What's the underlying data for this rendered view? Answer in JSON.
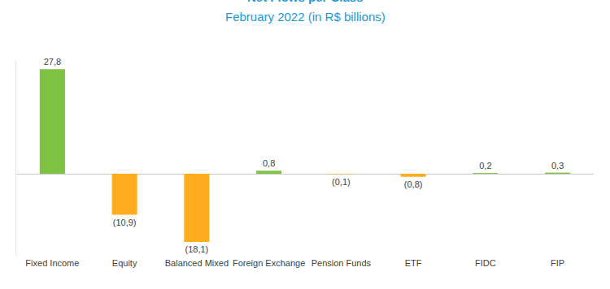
{
  "chart_data": {
    "type": "bar",
    "title": "Net Flows per Class",
    "subtitle": "February 2022 (in R$ billions)",
    "categories": [
      "Fixed Income",
      "Equity",
      "Balanced Mixed",
      "Foreign Exchange",
      "Pension Funds",
      "ETF",
      "FIDC",
      "FIP"
    ],
    "values": [
      27.8,
      -10.9,
      -18.1,
      0.8,
      -0.1,
      -0.8,
      0.2,
      0.3
    ],
    "value_labels": [
      "27,8",
      "(10,9)",
      "(18,1)",
      "0,8",
      "(0,1)",
      "(0,8)",
      "0,2",
      "0,3"
    ],
    "colors": [
      "#7dc242",
      "#ffad1f",
      "#ffad1f",
      "#7dc242",
      "#ffad1f",
      "#ffad1f",
      "#7dc242",
      "#7dc242"
    ],
    "ylim": [
      -22,
      30
    ],
    "yticks": [
      0
    ],
    "grid": true,
    "data_labels": true,
    "tick_labels": "x"
  }
}
